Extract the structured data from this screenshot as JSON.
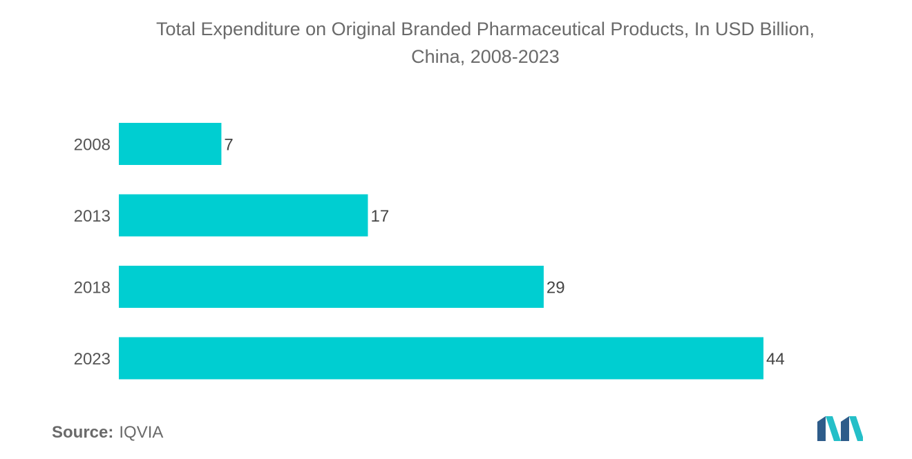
{
  "title_line1": "Total Expenditure on Original Branded Pharmaceutical Products, In USD Billion,",
  "title_line2": "China, 2008-2023",
  "source_label": "Source:",
  "source_value": "IQVIA",
  "bar_color": "#00CED1",
  "logo_colors": [
    "#2E5C8A",
    "#25BFC8"
  ],
  "chart_data": {
    "type": "bar",
    "orientation": "horizontal",
    "title": "Total Expenditure on Original Branded Pharmaceutical Products, In USD Billion, China, 2008-2023",
    "categories": [
      "2008",
      "2013",
      "2018",
      "2023"
    ],
    "values": [
      7,
      17,
      29,
      44
    ],
    "data_labels": [
      "7",
      "17",
      "29",
      "44"
    ],
    "xlabel": "",
    "ylabel": "",
    "xlim": [
      0,
      44
    ],
    "grid": false,
    "legend": "none"
  }
}
